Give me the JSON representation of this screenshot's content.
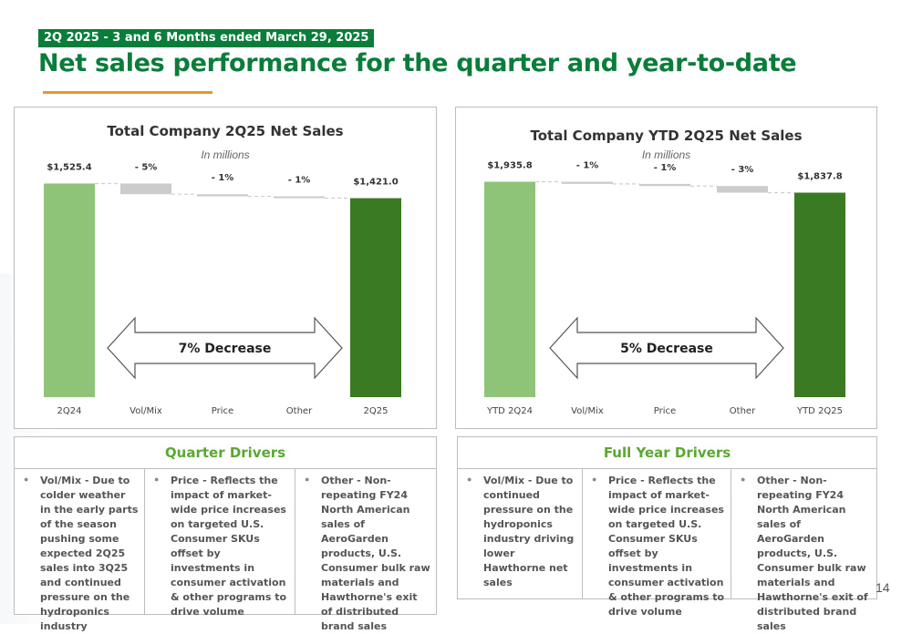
{
  "header": {
    "tag": "2Q 2025 - 3 and 6 Months ended March 29, 2025",
    "title": "Net sales performance for the quarter and year-to-date"
  },
  "colors": {
    "brand_green": "#0a7d3b",
    "start_bar": "#8dc477",
    "end_bar": "#3a7a22",
    "step_bar": "#cccccc",
    "accent_orange": "#f0932b",
    "driver_head": "#5aa832"
  },
  "chart_data": [
    {
      "type": "bar",
      "subtype": "waterfall",
      "title": "Total Company 2Q25 Net Sales",
      "subtitle": "In millions",
      "categories": [
        "2Q24",
        "Vol/Mix",
        "Price",
        "Other",
        "2Q25"
      ],
      "values": [
        1525.4,
        -76.3,
        -15.3,
        -12.8,
        1421.0
      ],
      "labels": [
        "$1,525.4",
        "- 5%",
        "- 1%",
        "- 1%",
        "$1,421.0"
      ],
      "annotation": "7% Decrease",
      "ylim": [
        0,
        1600
      ]
    },
    {
      "type": "bar",
      "subtype": "waterfall",
      "title": "Total Company YTD 2Q25 Net Sales",
      "subtitle": "In millions",
      "categories": [
        "YTD 2Q24",
        "Vol/Mix",
        "Price",
        "Other",
        "YTD 2Q25"
      ],
      "values": [
        1935.8,
        -19.4,
        -19.4,
        -59.2,
        1837.8
      ],
      "labels": [
        "$1,935.8",
        "- 1%",
        "- 1%",
        "- 3%",
        "$1,837.8"
      ],
      "annotation": "5% Decrease",
      "ylim": [
        0,
        2030
      ]
    }
  ],
  "quarter_drivers": {
    "heading": "Quarter Drivers",
    "items": [
      "Vol/Mix - Due to colder weather in the early parts of the season pushing some expected 2Q25 sales into 3Q25 and continued pressure on the hydroponics industry",
      "Price - Reflects the impact of market-wide price increases on targeted U.S. Consumer SKUs offset by investments in consumer activation & other programs to drive volume",
      "Other - Non-repeating FY24 North American sales of AeroGarden products, U.S. Consumer bulk raw materials and Hawthorne's exit of distributed brand sales"
    ]
  },
  "full_year_drivers": {
    "heading": "Full Year Drivers",
    "items": [
      "Vol/Mix - Due to continued pressure on the hydroponics industry driving lower Hawthorne net sales",
      "Price - Reflects the impact of market-wide price increases on targeted U.S. Consumer SKUs offset by investments in consumer activation & other programs to drive volume",
      "Other - Non-repeating FY24 North American sales of AeroGarden products, U.S. Consumer bulk raw materials and Hawthorne's exit of distributed brand sales"
    ]
  },
  "page_number": "14"
}
